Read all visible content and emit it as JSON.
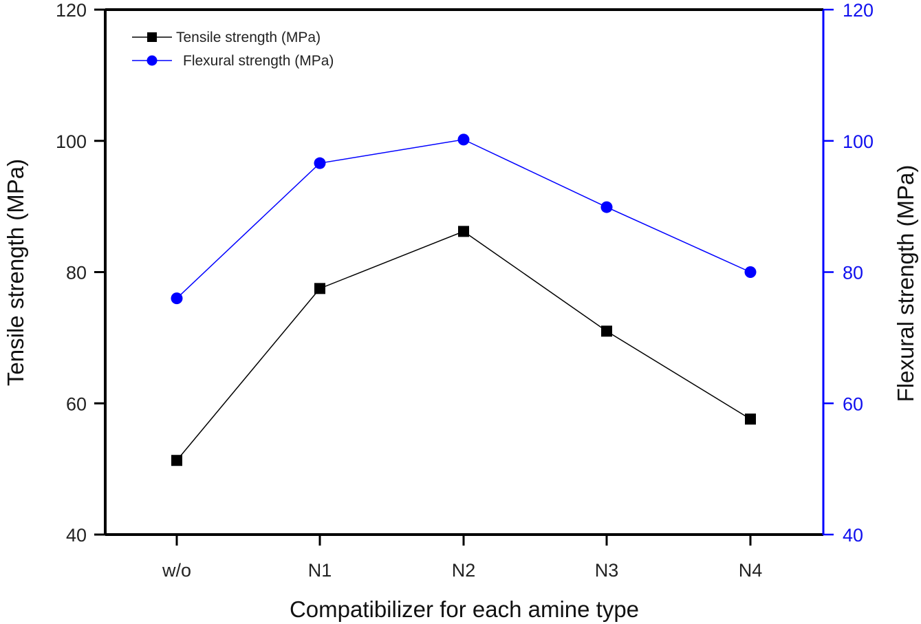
{
  "chart_data": {
    "type": "line",
    "title": "",
    "xlabel": "Compatibilizer for each amine type",
    "ylabel": "Tensile strength (MPa)",
    "y2label": "Flexural strength (MPa)",
    "categories": [
      "w/o",
      "N1",
      "N2",
      "N3",
      "N4"
    ],
    "ylim": [
      40,
      120
    ],
    "y2lim": [
      40,
      120
    ],
    "yticks": [
      40,
      60,
      80,
      100,
      120
    ],
    "y2ticks": [
      40,
      60,
      80,
      100,
      120
    ],
    "grid": false,
    "legend_position": "top-left",
    "series": [
      {
        "name": "Tensile strength (MPa)",
        "axis": "left",
        "color": "#000000",
        "marker": "square",
        "values": [
          51.3,
          77.5,
          86.2,
          71.0,
          57.6
        ]
      },
      {
        "name": "Flexural strength (MPa)",
        "axis": "right",
        "color": "#0000ff",
        "marker": "circle",
        "values": [
          76.0,
          96.6,
          100.2,
          89.9,
          80.0
        ]
      }
    ],
    "colors": {
      "left_axis": "#000000",
      "right_axis": "#0000ff"
    }
  }
}
